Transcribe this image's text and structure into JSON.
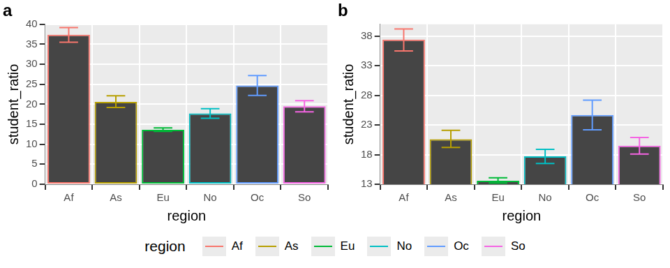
{
  "chart_data": [
    {
      "type": "bar",
      "title": "a",
      "x_label": "region",
      "y_label": "student_ratio",
      "categories": [
        "Af",
        "As",
        "Eu",
        "No",
        "Oc",
        "So"
      ],
      "values": [
        37.4,
        20.6,
        13.6,
        17.7,
        24.7,
        19.5
      ],
      "error_low": [
        35.5,
        19.2,
        13.2,
        16.5,
        22.2,
        18.1
      ],
      "error_high": [
        39.2,
        22.1,
        14.1,
        18.9,
        27.2,
        20.9
      ],
      "colors": [
        "#F8766D",
        "#B79F00",
        "#00BA38",
        "#00BFC4",
        "#619CFF",
        "#F564E3"
      ],
      "ylim": [
        0,
        40
      ],
      "yticks": [
        0,
        5,
        10,
        15,
        20,
        25,
        30,
        35,
        40
      ],
      "grid": true
    },
    {
      "type": "bar",
      "title": "b",
      "x_label": "region",
      "y_label": "student_ratio",
      "categories": [
        "Af",
        "As",
        "Eu",
        "No",
        "Oc",
        "So"
      ],
      "values": [
        37.4,
        20.6,
        13.6,
        17.7,
        24.7,
        19.5
      ],
      "error_low": [
        35.5,
        19.2,
        13.2,
        16.5,
        22.2,
        18.1
      ],
      "error_high": [
        39.2,
        22.1,
        14.1,
        18.9,
        27.2,
        20.9
      ],
      "colors": [
        "#F8766D",
        "#B79F00",
        "#00BA38",
        "#00BFC4",
        "#619CFF",
        "#F564E3"
      ],
      "ylim": [
        13,
        40
      ],
      "yticks": [
        13,
        18,
        23,
        28,
        33,
        38
      ],
      "grid": true
    }
  ],
  "shared_legend": {
    "title": "region",
    "position": "bottom"
  }
}
